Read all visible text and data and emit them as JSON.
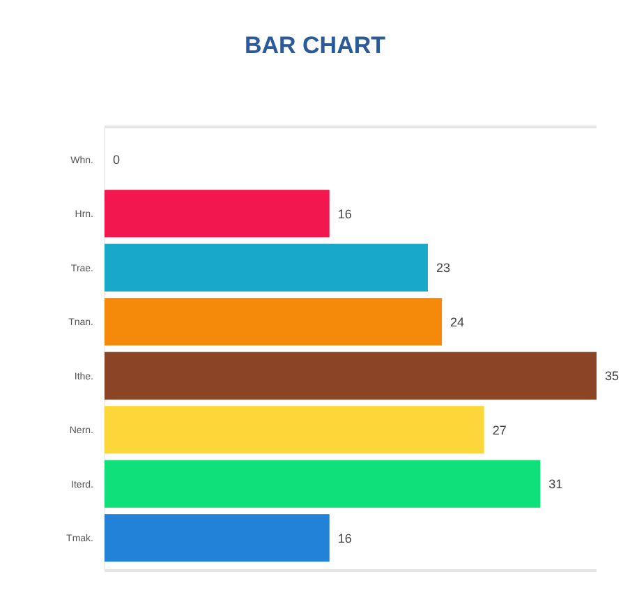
{
  "chart_data": {
    "type": "bar",
    "title": "BAR CHART",
    "orientation": "horizontal",
    "categories": [
      "Whn.",
      "Hrn.",
      "Trae.",
      "Tnan.",
      "Ithe.",
      "Nern.",
      "Iterd.",
      "Tmak."
    ],
    "values": [
      0,
      16,
      23,
      24,
      35,
      27,
      31,
      16
    ],
    "colors": [
      "#9e9e9e",
      "#f2184f",
      "#18a8c8",
      "#f58a0a",
      "#8b4425",
      "#fdd63a",
      "#0fe07a",
      "#2182d8"
    ],
    "xlim": [
      0,
      35
    ],
    "data_labels": true,
    "tick_labels": "y"
  }
}
